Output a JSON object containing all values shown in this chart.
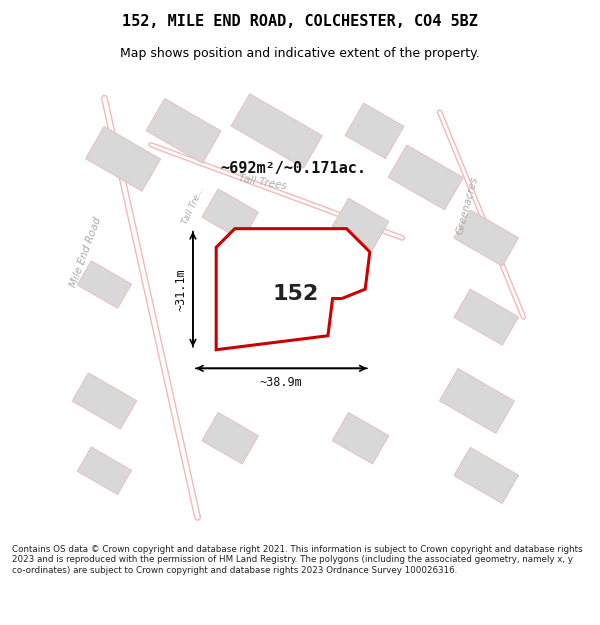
{
  "title": "152, MILE END ROAD, COLCHESTER, CO4 5BZ",
  "subtitle": "Map shows position and indicative extent of the property.",
  "area_label": "~692m²/~0.171ac.",
  "property_number": "152",
  "width_label": "~38.9m",
  "height_label": "~31.1m",
  "footer": "Contains OS data © Crown copyright and database right 2021. This information is subject to Crown copyright and database rights 2023 and is reproduced with the permission of HM Land Registry. The polygons (including the associated geometry, namely x, y co-ordinates) are subject to Crown copyright and database rights 2023 Ordnance Survey 100026316.",
  "bg_color": "#f0eeec",
  "map_bg": "#f0eeec",
  "road_color": "#ffffff",
  "building_color": "#d8d8d8",
  "property_fill": "#ffffff",
  "property_edge": "#cc0000",
  "road_line_color": "#f4b8b8",
  "street_label_color": "#aaaaaa",
  "title_color": "#000000",
  "dim_color": "#000000",
  "figsize": [
    6.0,
    6.25
  ],
  "dpi": 100
}
